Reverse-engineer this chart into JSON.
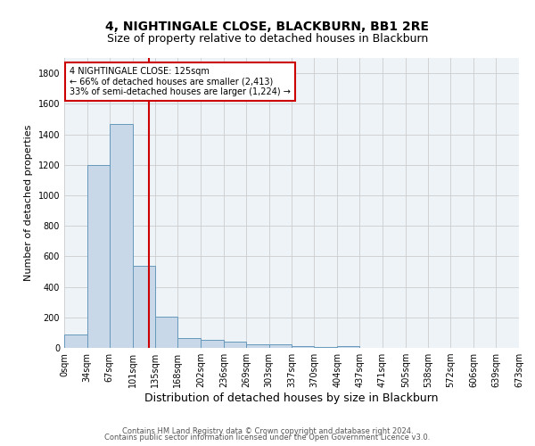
{
  "title": "4, NIGHTINGALE CLOSE, BLACKBURN, BB1 2RE",
  "subtitle": "Size of property relative to detached houses in Blackburn",
  "xlabel": "Distribution of detached houses by size in Blackburn",
  "ylabel": "Number of detached properties",
  "bar_edges": [
    0,
    34,
    67,
    101,
    135,
    168,
    202,
    236,
    269,
    303,
    337,
    370,
    404,
    437,
    471,
    505,
    538,
    572,
    606,
    639,
    673
  ],
  "bar_heights": [
    90,
    1200,
    1470,
    540,
    205,
    65,
    50,
    40,
    25,
    22,
    10,
    5,
    10,
    0,
    0,
    0,
    0,
    0,
    0,
    0
  ],
  "bar_color": "#c8d8e8",
  "bar_edgecolor": "#6699bb",
  "property_size": 125,
  "vline_color": "#cc0000",
  "annotation_text": "4 NIGHTINGALE CLOSE: 125sqm\n← 66% of detached houses are smaller (2,413)\n33% of semi-detached houses are larger (1,224) →",
  "annotation_box_color": "#ffffff",
  "annotation_box_edgecolor": "#cc0000",
  "ylim": [
    0,
    1900
  ],
  "yticks": [
    0,
    200,
    400,
    600,
    800,
    1000,
    1200,
    1400,
    1600,
    1800
  ],
  "xtick_labels": [
    "0sqm",
    "34sqm",
    "67sqm",
    "101sqm",
    "135sqm",
    "168sqm",
    "202sqm",
    "236sqm",
    "269sqm",
    "303sqm",
    "337sqm",
    "370sqm",
    "404sqm",
    "437sqm",
    "471sqm",
    "505sqm",
    "538sqm",
    "572sqm",
    "606sqm",
    "639sqm",
    "673sqm"
  ],
  "grid_color": "#cccccc",
  "bg_color": "#eef3f8",
  "footer_line1": "Contains HM Land Registry data © Crown copyright and database right 2024.",
  "footer_line2": "Contains public sector information licensed under the Open Government Licence v3.0.",
  "title_fontsize": 10,
  "subtitle_fontsize": 9,
  "xlabel_fontsize": 9,
  "ylabel_fontsize": 8,
  "tick_fontsize": 7,
  "footer_fontsize": 6,
  "ann_fontsize": 7
}
